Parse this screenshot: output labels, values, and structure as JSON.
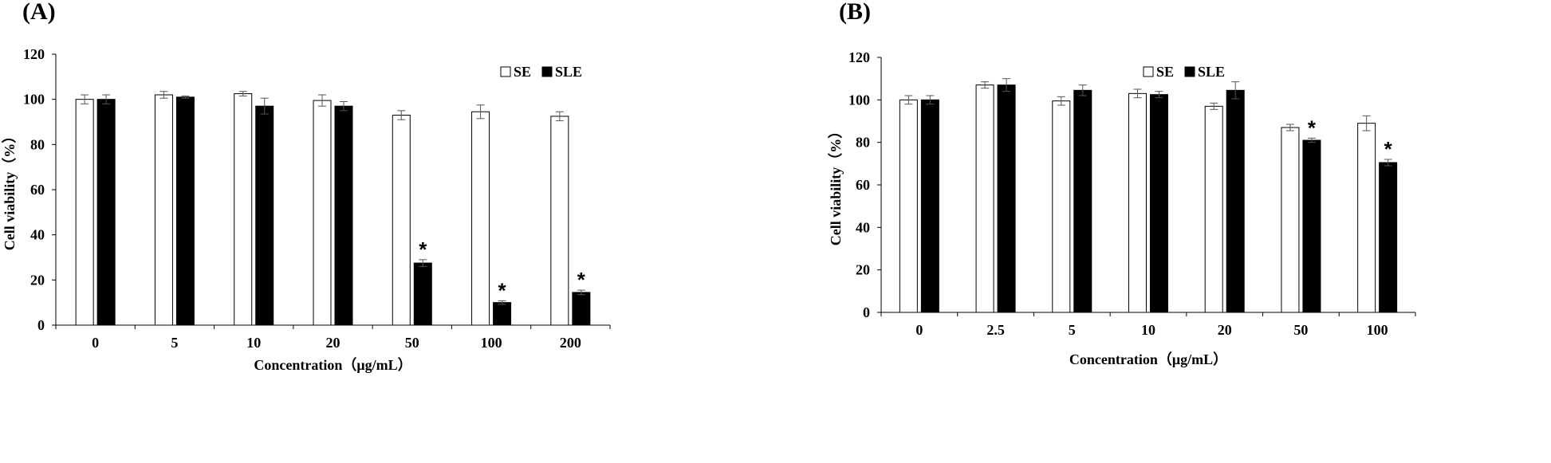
{
  "chart_data": [
    {
      "panel_label": "(A)",
      "type": "bar",
      "categories": [
        "0",
        "5",
        "10",
        "20",
        "50",
        "100",
        "200"
      ],
      "series": [
        {
          "name": "SE",
          "fill": "#ffffff",
          "values": [
            100,
            102,
            102.5,
            99.5,
            93,
            94.5,
            92.5
          ],
          "errors": [
            2,
            1.5,
            1,
            2.5,
            2,
            3,
            2
          ]
        },
        {
          "name": "SLE",
          "fill": "#000000",
          "values": [
            100,
            101,
            97,
            97,
            27.5,
            10,
            14.5
          ],
          "errors": [
            2,
            0.5,
            3.5,
            2,
            1.5,
            0.8,
            1
          ]
        }
      ],
      "significance": [
        "",
        "",
        "",
        "",
        "*",
        "*",
        "*"
      ],
      "xlabel": "Concentration（μg/mL）",
      "ylabel": "Cell viability（%）",
      "ylim": [
        0,
        120
      ],
      "yticks": [
        0,
        20,
        40,
        60,
        80,
        100,
        120
      ],
      "legend_position": "top-right"
    },
    {
      "panel_label": "(B)",
      "type": "bar",
      "categories": [
        "0",
        "2.5",
        "5",
        "10",
        "20",
        "50",
        "100"
      ],
      "series": [
        {
          "name": "SE",
          "fill": "#ffffff",
          "values": [
            100,
            107,
            99.5,
            103,
            97,
            87,
            89
          ],
          "errors": [
            2,
            1.5,
            2,
            2,
            1.5,
            1.5,
            3.5
          ]
        },
        {
          "name": "SLE",
          "fill": "#000000",
          "values": [
            100,
            107,
            104.5,
            102.5,
            104.5,
            81,
            70.5
          ],
          "errors": [
            2,
            3,
            2.5,
            1.5,
            4,
            1,
            1.5
          ]
        }
      ],
      "significance": [
        "",
        "",
        "",
        "",
        "",
        "*",
        "*"
      ],
      "xlabel": "Concentration（μg/mL）",
      "ylabel": "Cell viability（%）",
      "ylim": [
        0,
        120
      ],
      "yticks": [
        0,
        20,
        40,
        60,
        80,
        100,
        120
      ],
      "legend_position": "top-right"
    }
  ]
}
